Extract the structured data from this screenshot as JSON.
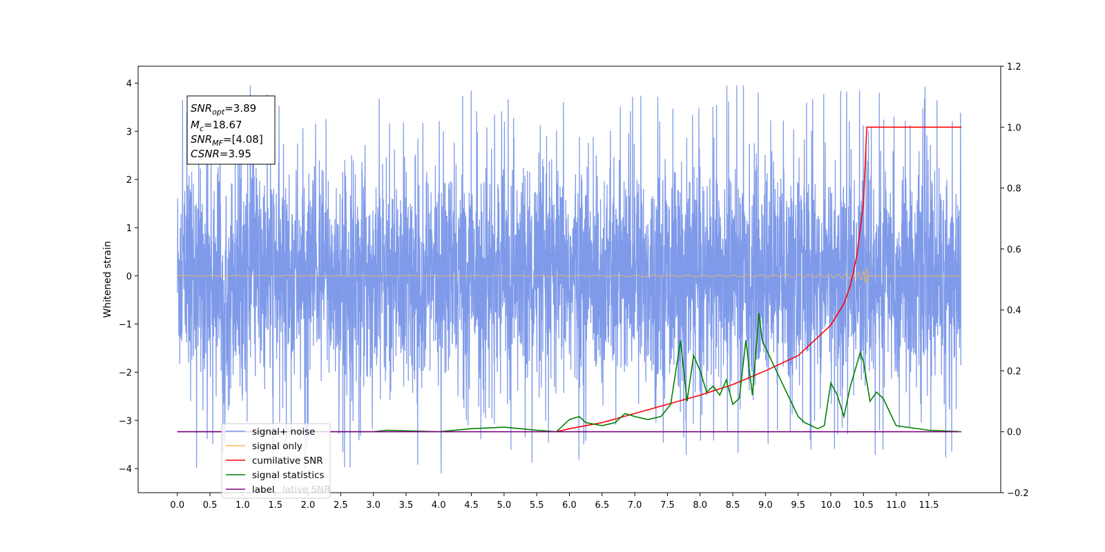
{
  "chart_data": {
    "type": "line",
    "title": "",
    "xlabel": "",
    "ylabel": "Whitened strain",
    "xlim": [
      -0.6,
      12.6
    ],
    "ylim": [
      -4.5,
      4.35
    ],
    "y2lim": [
      -0.2,
      1.2
    ],
    "x_ticks": [
      0.0,
      0.5,
      1.0,
      1.5,
      2.0,
      2.5,
      3.0,
      3.5,
      4.0,
      4.5,
      5.0,
      5.5,
      6.0,
      6.5,
      7.0,
      7.5,
      8.0,
      8.5,
      9.0,
      9.5,
      10.0,
      10.5,
      11.0,
      11.5
    ],
    "y_ticks": [
      -4,
      -3,
      -2,
      -1,
      0,
      1,
      2,
      3,
      4
    ],
    "y2_ticks": [
      -0.2,
      0.0,
      0.2,
      0.4,
      0.6,
      0.8,
      1.0,
      1.2
    ],
    "grid": false,
    "legend_position": "lower-left",
    "annotation": {
      "snr_opt": {
        "base": "SNR",
        "sub": "opt",
        "value": "=3.89"
      },
      "mc": {
        "base": "M",
        "sub": "c",
        "value": "=18.67"
      },
      "snr_mf": {
        "base": "SNR",
        "sub": "MF",
        "value": "=[4.08]"
      },
      "csnr": {
        "base": "CSNR",
        "value": "=3.95"
      }
    },
    "series": [
      {
        "name": "signal+ noise",
        "color": "#7895e8",
        "axis": "left",
        "description_only": false
      },
      {
        "name": "signal only",
        "color": "#f5b95a",
        "axis": "left"
      },
      {
        "name": "cumilative SNR",
        "color": "#ff0000",
        "axis": "right",
        "x": [
          5.8,
          6.0,
          6.5,
          7.0,
          7.5,
          8.0,
          8.5,
          9.0,
          9.5,
          10.0,
          10.2,
          10.3,
          10.4,
          10.5,
          10.55,
          10.6,
          11.0,
          11.5,
          12.0
        ],
        "values": [
          0.0,
          0.01,
          0.03,
          0.06,
          0.09,
          0.12,
          0.155,
          0.2,
          0.25,
          0.35,
          0.42,
          0.48,
          0.58,
          0.75,
          1.0,
          1.0,
          1.0,
          1.0,
          1.0
        ]
      },
      {
        "name": "signal statistics",
        "color": "#008000",
        "axis": "right",
        "x": [
          0.0,
          1.0,
          2.0,
          3.0,
          3.2,
          4.0,
          4.5,
          5.0,
          5.5,
          5.8,
          6.0,
          6.15,
          6.25,
          6.5,
          6.7,
          6.85,
          7.0,
          7.2,
          7.4,
          7.55,
          7.7,
          7.8,
          7.9,
          8.0,
          8.1,
          8.2,
          8.3,
          8.4,
          8.5,
          8.6,
          8.7,
          8.8,
          8.9,
          8.95,
          9.1,
          9.3,
          9.5,
          9.6,
          9.7,
          9.8,
          9.9,
          10.0,
          10.1,
          10.2,
          10.3,
          10.45,
          10.5,
          10.6,
          10.7,
          10.8,
          11.0,
          11.5,
          12.0
        ],
        "values": [
          0.0,
          0.0,
          0.0,
          0.0,
          0.005,
          0.0,
          0.01,
          0.015,
          0.005,
          0.0,
          0.04,
          0.05,
          0.03,
          0.02,
          0.03,
          0.06,
          0.05,
          0.04,
          0.05,
          0.09,
          0.3,
          0.1,
          0.25,
          0.2,
          0.13,
          0.15,
          0.12,
          0.17,
          0.09,
          0.11,
          0.3,
          0.12,
          0.39,
          0.3,
          0.23,
          0.14,
          0.05,
          0.03,
          0.02,
          0.01,
          0.02,
          0.16,
          0.12,
          0.05,
          0.15,
          0.26,
          0.23,
          0.1,
          0.13,
          0.11,
          0.02,
          0.005,
          0.0
        ]
      },
      {
        "name": "label",
        "color": "#800080",
        "axis": "right",
        "x": [
          0.0,
          11.95
        ],
        "values": [
          0.0,
          0.0
        ]
      },
      {
        "name": "cumilative SNR",
        "color": "#cccccc",
        "axis": "right",
        "hidden_under_legend": true
      }
    ]
  }
}
